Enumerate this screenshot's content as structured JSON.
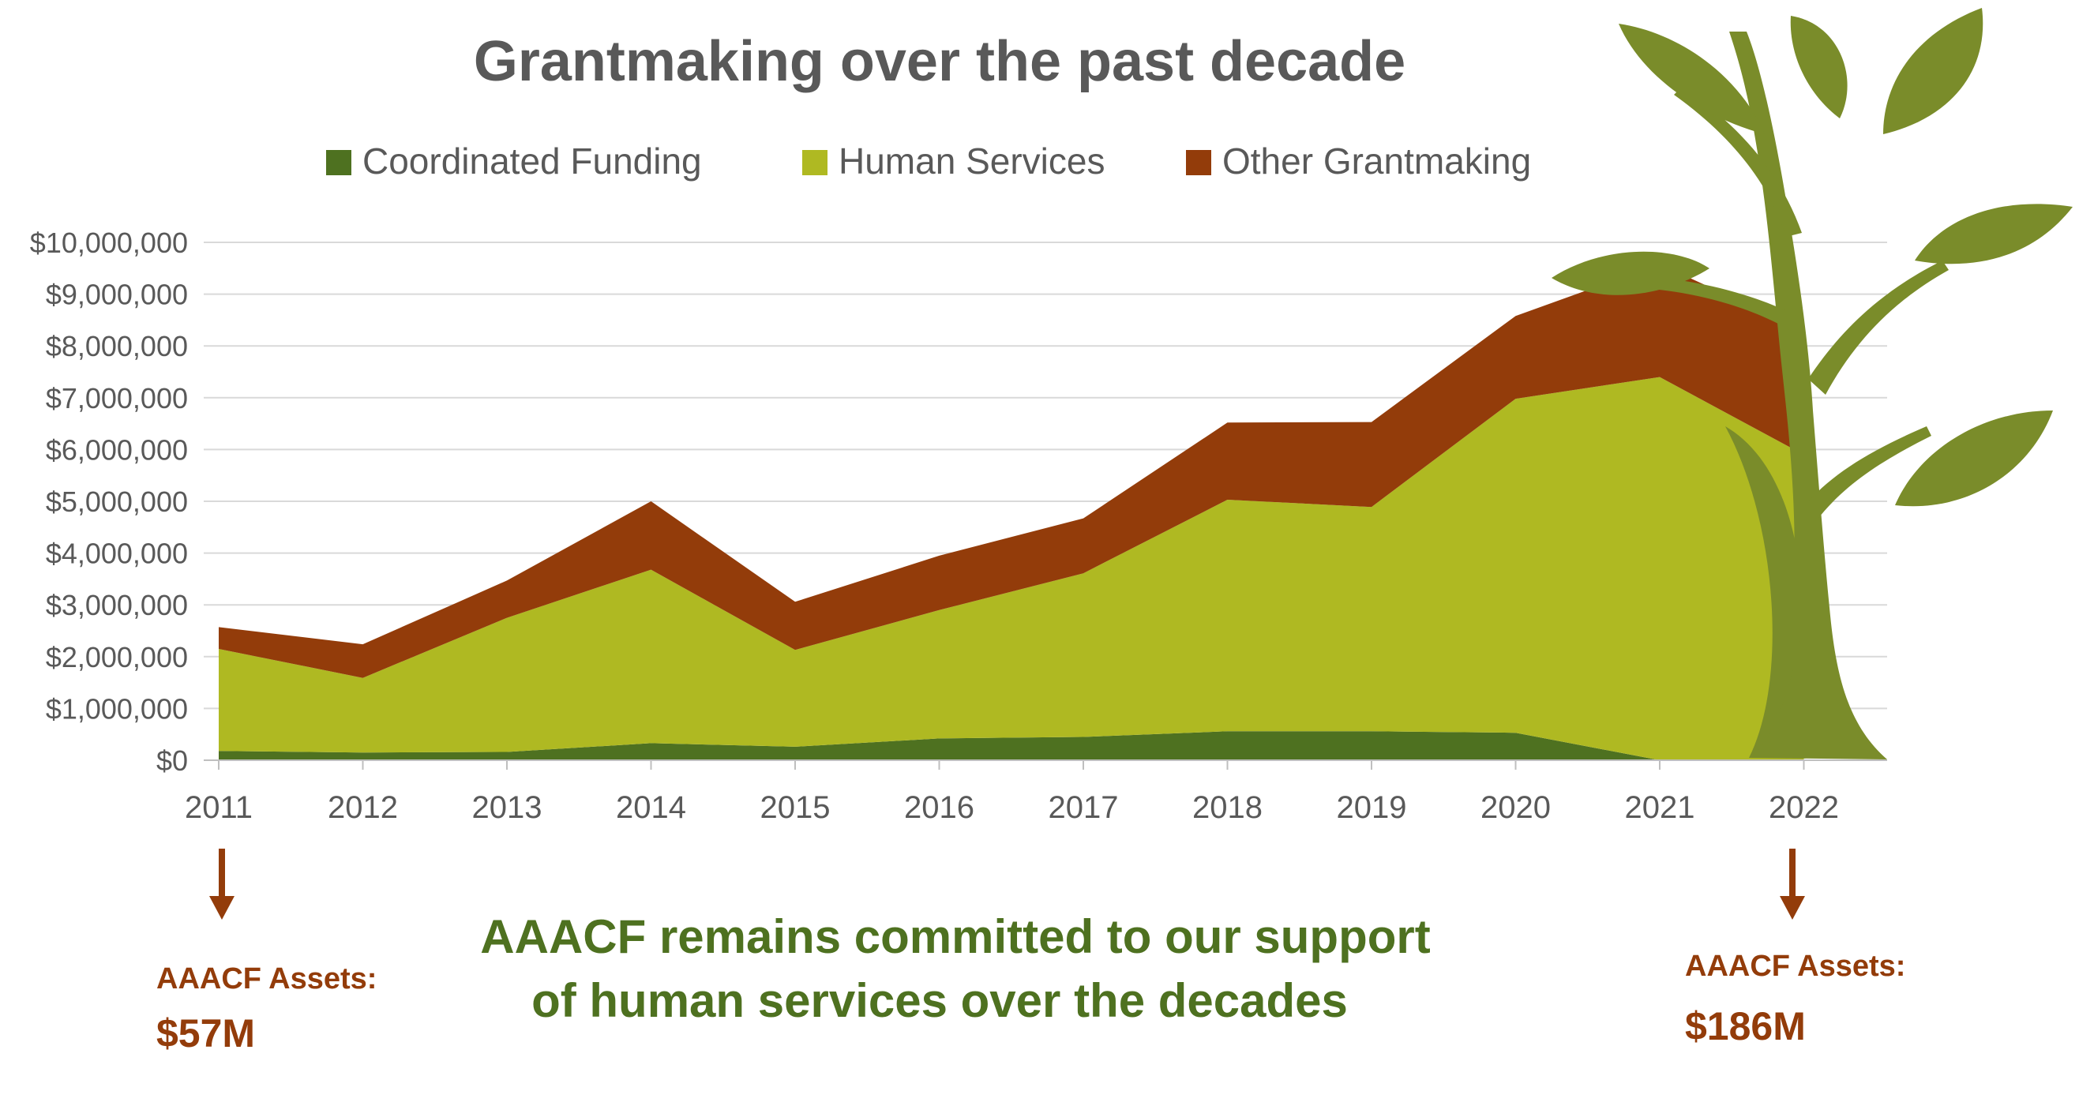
{
  "chart_data": {
    "type": "area",
    "stacked": true,
    "title": "Grantmaking over the past decade",
    "xlabel": "",
    "ylabel": "",
    "x": [
      "2011",
      "2012",
      "2013",
      "2014",
      "2015",
      "2016",
      "2017",
      "2018",
      "2019",
      "2020",
      "2021",
      "2022"
    ],
    "ylim": [
      0,
      10000000
    ],
    "yticks": [
      0,
      1000000,
      2000000,
      3000000,
      4000000,
      5000000,
      6000000,
      7000000,
      8000000,
      9000000,
      10000000
    ],
    "ytick_labels": [
      "$0",
      "$1,000,000",
      "$2,000,000",
      "$3,000,000",
      "$4,000,000",
      "$5,000,000",
      "$6,000,000",
      "$7,000,000",
      "$8,000,000",
      "$9,000,000",
      "$10,000,000"
    ],
    "grid": true,
    "legend_position": "top",
    "series": [
      {
        "name": "Coordinated Funding",
        "color": "#4e7120",
        "values": [
          180000,
          150000,
          160000,
          330000,
          260000,
          420000,
          450000,
          560000,
          560000,
          530000,
          0,
          0
        ]
      },
      {
        "name": "Human Services",
        "color": "#afb922",
        "values": [
          1970000,
          1440000,
          2590000,
          3350000,
          1870000,
          2480000,
          3160000,
          4470000,
          4330000,
          6450000,
          7400000,
          5900000
        ]
      },
      {
        "name": "Other Grantmaking",
        "color": "#933c0a",
        "values": [
          420000,
          650000,
          720000,
          1320000,
          930000,
          1050000,
          1060000,
          1490000,
          1640000,
          1600000,
          2180000,
          2400000
        ]
      }
    ]
  },
  "annotations": {
    "left_label": "AAACF Assets:",
    "left_value": "$57M",
    "right_label": "AAACF Assets:",
    "right_value": "$186M",
    "message_line1": "AAACF remains committed to our support",
    "message_line2": "of human services over the decades",
    "arrow_color": "#933c0a",
    "message_color": "#4e7120",
    "title_color": "#595959",
    "plant_color": "#7a8c2a"
  }
}
